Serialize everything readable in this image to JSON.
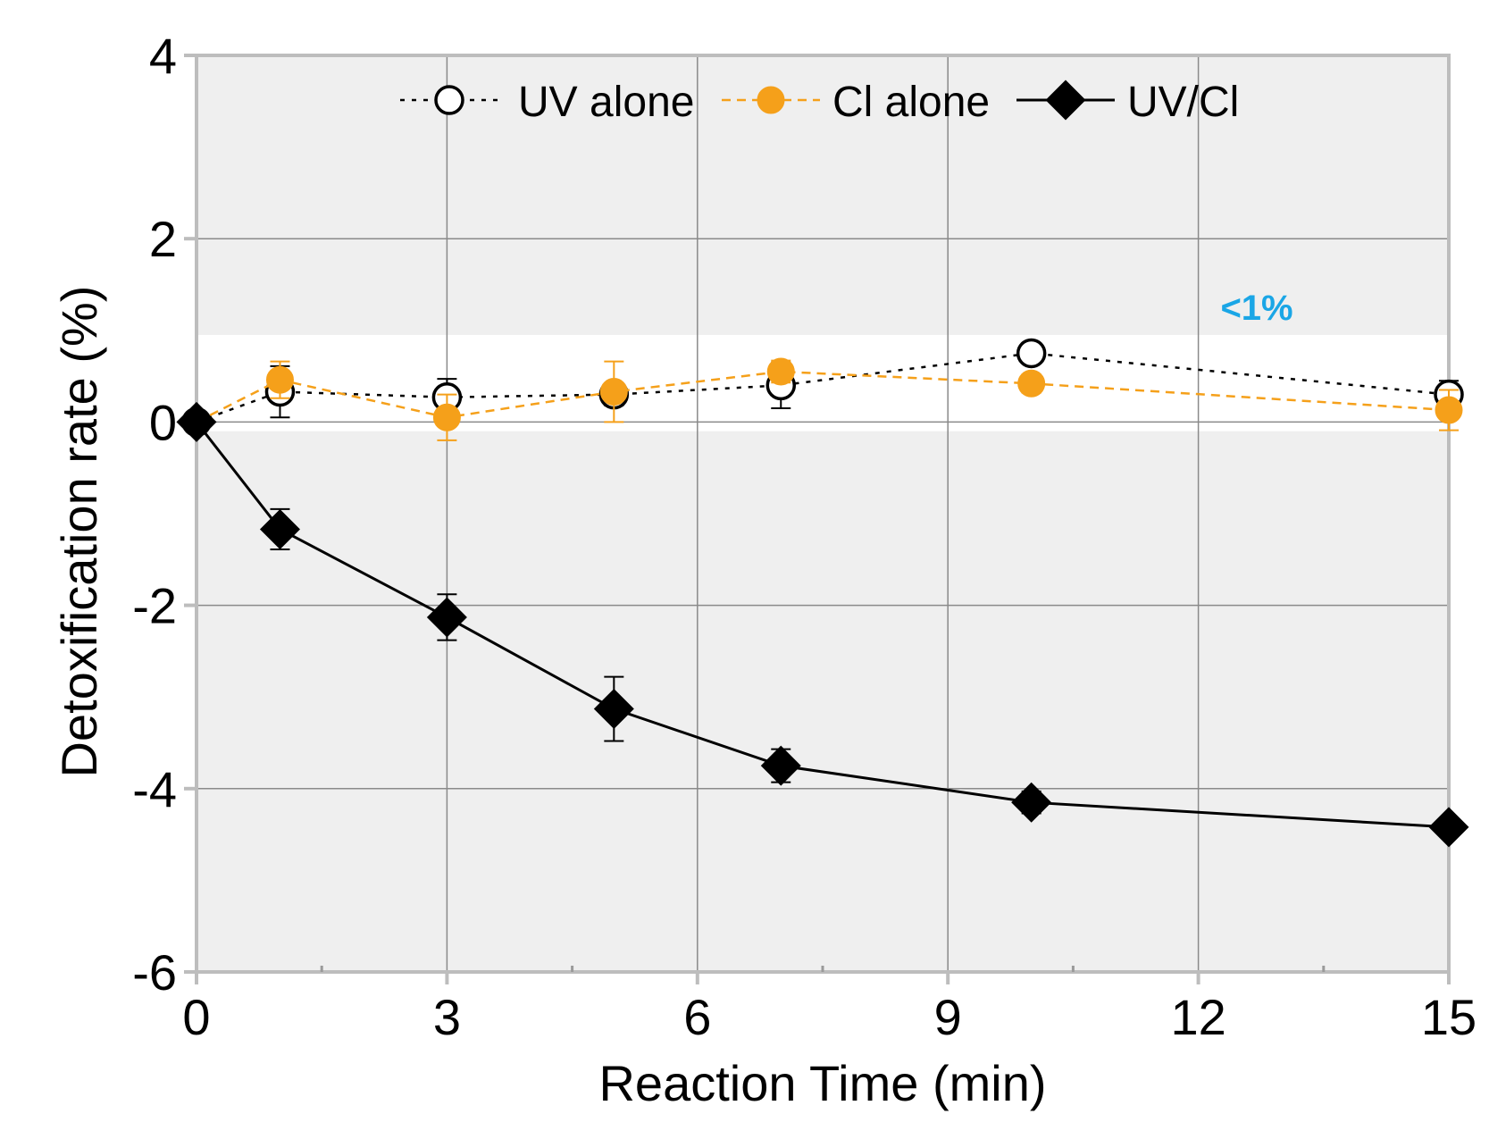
{
  "chart_data": {
    "type": "line",
    "title": "",
    "xlabel": "Reaction Time (min)",
    "ylabel": "Detoxification rate (%)",
    "xlim": [
      0,
      15
    ],
    "ylim": [
      -6,
      4
    ],
    "xticks": [
      0,
      3,
      6,
      9,
      12,
      15
    ],
    "yticks": [
      4,
      2,
      0,
      -2,
      -4,
      -6
    ],
    "x_minor_ticks": [
      1.5,
      4.5,
      7.5,
      10.5,
      13.5
    ],
    "grid": true,
    "legend_position": "top",
    "highlight_band": {
      "ymin": -0.1,
      "ymax": 0.95
    },
    "annotation": {
      "text": "<1%",
      "x": 12.7,
      "y": 1.25,
      "color": "#1aa6e6"
    },
    "series": [
      {
        "name": "UV alone",
        "marker": "open-circle",
        "line_style": "dotted",
        "color": "#000000",
        "x": [
          0,
          1,
          3,
          5,
          7,
          10,
          15
        ],
        "y": [
          0.0,
          0.33,
          0.27,
          0.3,
          0.4,
          0.75,
          0.3
        ],
        "error": [
          0.0,
          0.28,
          0.2,
          0.12,
          0.25,
          0.1,
          0.15
        ]
      },
      {
        "name": "Cl alone",
        "marker": "filled-circle",
        "line_style": "dashed",
        "color": "#f5a01a",
        "x": [
          0,
          1,
          3,
          5,
          7,
          10,
          15
        ],
        "y": [
          0.0,
          0.46,
          0.05,
          0.33,
          0.55,
          0.42,
          0.13
        ],
        "error": [
          0.0,
          0.2,
          0.25,
          0.33,
          0.12,
          0.1,
          0.22
        ]
      },
      {
        "name": "UV/Cl",
        "marker": "filled-diamond",
        "line_style": "solid",
        "color": "#000000",
        "x": [
          0,
          1,
          3,
          5,
          7,
          10,
          15
        ],
        "y": [
          0.0,
          -1.17,
          -2.13,
          -3.13,
          -3.75,
          -4.15,
          -4.42
        ],
        "error": [
          0.0,
          0.22,
          0.25,
          0.35,
          0.18,
          0.12,
          0.06
        ]
      }
    ]
  }
}
